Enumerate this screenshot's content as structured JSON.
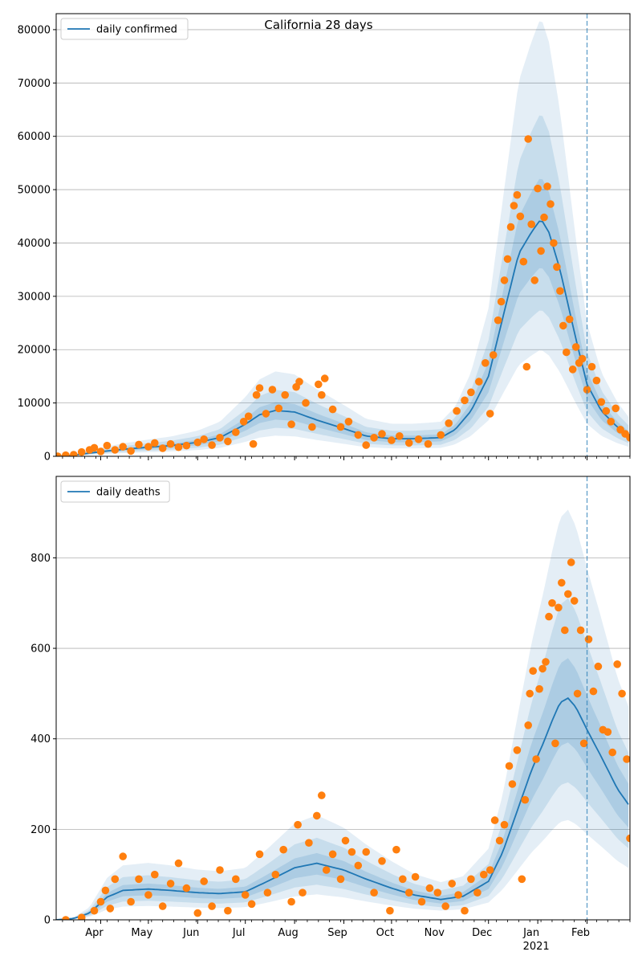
{
  "figure": {
    "title": "California 28 days"
  },
  "colors": {
    "line": "#1f77b4",
    "points": "#ff7f0e",
    "band": "#1f77b4",
    "grid": "#b0b0b0",
    "marker_line": "#1f77b4"
  },
  "x_axis": {
    "month_labels": [
      "Apr",
      "May",
      "Jun",
      "Jul",
      "Aug",
      "Sep",
      "Oct",
      "Nov",
      "Dec",
      "Jan",
      "Feb"
    ],
    "month_dates": [
      "2020-04-01",
      "2020-05-01",
      "2020-06-01",
      "2020-07-01",
      "2020-08-01",
      "2020-09-01",
      "2020-10-01",
      "2020-11-01",
      "2020-12-01",
      "2021-01-01",
      "2021-02-01"
    ],
    "year_label": "2021",
    "xlim": [
      "2020-03-04",
      "2021-02-28"
    ]
  },
  "chart_data": [
    {
      "type": "line",
      "title": "California 28 days",
      "legend": {
        "label": "daily confirmed",
        "placement": "top-left"
      },
      "ylim": [
        0,
        83000
      ],
      "yticks": [
        0,
        10000,
        20000,
        30000,
        40000,
        50000,
        60000,
        70000,
        80000
      ],
      "grid": "horizontal",
      "forecast_start": "2021-02-01",
      "series": [
        {
          "name": "daily confirmed",
          "kind": "model-line",
          "dates": [
            "2020-03-04",
            "2020-03-15",
            "2020-03-25",
            "2020-04-05",
            "2020-04-15",
            "2020-05-01",
            "2020-05-15",
            "2020-06-01",
            "2020-06-15",
            "2020-07-01",
            "2020-07-10",
            "2020-07-20",
            "2020-08-01",
            "2020-08-15",
            "2020-09-01",
            "2020-09-15",
            "2020-10-01",
            "2020-10-15",
            "2020-11-01",
            "2020-11-10",
            "2020-11-20",
            "2020-12-01",
            "2020-12-10",
            "2020-12-20",
            "2020-12-28",
            "2021-01-03",
            "2021-01-08",
            "2021-01-15",
            "2021-01-25",
            "2021-02-01",
            "2021-02-10",
            "2021-02-20",
            "2021-02-28"
          ],
          "values": [
            0,
            200,
            600,
            1000,
            1300,
            1700,
            2000,
            2600,
            3500,
            6000,
            7800,
            8600,
            8300,
            6800,
            5200,
            3800,
            3300,
            3300,
            3500,
            5000,
            8500,
            15000,
            26000,
            38000,
            42000,
            44500,
            42000,
            35000,
            22000,
            13500,
            8500,
            5500,
            3800
          ]
        },
        {
          "name": "daily confirmed observations",
          "kind": "points",
          "points": [
            [
              "2020-03-05",
              0
            ],
            [
              "2020-03-10",
              200
            ],
            [
              "2020-03-15",
              300
            ],
            [
              "2020-03-20",
              800
            ],
            [
              "2020-03-25",
              1200
            ],
            [
              "2020-03-28",
              1600
            ],
            [
              "2020-04-01",
              900
            ],
            [
              "2020-04-05",
              2000
            ],
            [
              "2020-04-10",
              1200
            ],
            [
              "2020-04-15",
              1800
            ],
            [
              "2020-04-20",
              1000
            ],
            [
              "2020-04-25",
              2200
            ],
            [
              "2020-05-01",
              1800
            ],
            [
              "2020-05-05",
              2500
            ],
            [
              "2020-05-10",
              1500
            ],
            [
              "2020-05-15",
              2300
            ],
            [
              "2020-05-20",
              1700
            ],
            [
              "2020-05-25",
              2000
            ],
            [
              "2020-06-01",
              2600
            ],
            [
              "2020-06-05",
              3200
            ],
            [
              "2020-06-10",
              2100
            ],
            [
              "2020-06-15",
              3500
            ],
            [
              "2020-06-20",
              2800
            ],
            [
              "2020-06-25",
              4500
            ],
            [
              "2020-06-30",
              6500
            ],
            [
              "2020-07-03",
              7500
            ],
            [
              "2020-07-06",
              2300
            ],
            [
              "2020-07-08",
              11500
            ],
            [
              "2020-07-10",
              12800
            ],
            [
              "2020-07-14",
              8000
            ],
            [
              "2020-07-18",
              12500
            ],
            [
              "2020-07-22",
              9000
            ],
            [
              "2020-07-26",
              11500
            ],
            [
              "2020-07-30",
              6000
            ],
            [
              "2020-08-02",
              13000
            ],
            [
              "2020-08-04",
              14000
            ],
            [
              "2020-08-08",
              10000
            ],
            [
              "2020-08-12",
              5500
            ],
            [
              "2020-08-16",
              13500
            ],
            [
              "2020-08-18",
              11500
            ],
            [
              "2020-08-20",
              14600
            ],
            [
              "2020-08-25",
              8800
            ],
            [
              "2020-08-30",
              5500
            ],
            [
              "2020-09-04",
              6500
            ],
            [
              "2020-09-10",
              4000
            ],
            [
              "2020-09-15",
              2100
            ],
            [
              "2020-09-20",
              3500
            ],
            [
              "2020-09-25",
              4200
            ],
            [
              "2020-10-01",
              3000
            ],
            [
              "2020-10-06",
              3800
            ],
            [
              "2020-10-12",
              2500
            ],
            [
              "2020-10-18",
              3200
            ],
            [
              "2020-10-24",
              2300
            ],
            [
              "2020-11-01",
              4000
            ],
            [
              "2020-11-06",
              6200
            ],
            [
              "2020-11-11",
              8500
            ],
            [
              "2020-11-16",
              10500
            ],
            [
              "2020-11-20",
              12000
            ],
            [
              "2020-11-25",
              14000
            ],
            [
              "2020-11-29",
              17500
            ],
            [
              "2020-12-02",
              8000
            ],
            [
              "2020-12-04",
              19000
            ],
            [
              "2020-12-07",
              25500
            ],
            [
              "2020-12-09",
              29000
            ],
            [
              "2020-12-11",
              33000
            ],
            [
              "2020-12-13",
              37000
            ],
            [
              "2020-12-15",
              43000
            ],
            [
              "2020-12-17",
              47000
            ],
            [
              "2020-12-19",
              49000
            ],
            [
              "2020-12-21",
              45000
            ],
            [
              "2020-12-23",
              36500
            ],
            [
              "2020-12-25",
              16800
            ],
            [
              "2020-12-26",
              59500
            ],
            [
              "2020-12-28",
              43500
            ],
            [
              "2020-12-30",
              33000
            ],
            [
              "2021-01-01",
              50200
            ],
            [
              "2021-01-03",
              38500
            ],
            [
              "2021-01-05",
              44800
            ],
            [
              "2021-01-07",
              50600
            ],
            [
              "2021-01-09",
              47300
            ],
            [
              "2021-01-11",
              40000
            ],
            [
              "2021-01-13",
              35500
            ],
            [
              "2021-01-15",
              31000
            ],
            [
              "2021-01-17",
              24500
            ],
            [
              "2021-01-19",
              19500
            ],
            [
              "2021-01-21",
              25700
            ],
            [
              "2021-01-23",
              16300
            ],
            [
              "2021-01-25",
              20500
            ],
            [
              "2021-01-27",
              17500
            ],
            [
              "2021-01-29",
              18300
            ],
            [
              "2021-02-01",
              12500
            ],
            [
              "2021-02-04",
              16800
            ],
            [
              "2021-02-07",
              14200
            ],
            [
              "2021-02-10",
              10200
            ],
            [
              "2021-02-13",
              8500
            ],
            [
              "2021-02-16",
              6500
            ],
            [
              "2021-02-19",
              9000
            ],
            [
              "2021-02-22",
              5000
            ],
            [
              "2021-02-25",
              4200
            ],
            [
              "2021-02-28",
              3500
            ]
          ]
        }
      ]
    },
    {
      "type": "line",
      "legend": {
        "label": "daily deaths",
        "placement": "top-left"
      },
      "ylim": [
        0,
        980
      ],
      "yticks": [
        0,
        200,
        400,
        600,
        800
      ],
      "grid": "horizontal",
      "forecast_start": "2021-02-01",
      "series": [
        {
          "name": "daily deaths",
          "kind": "model-line",
          "dates": [
            "2020-03-04",
            "2020-03-15",
            "2020-03-25",
            "2020-04-05",
            "2020-04-15",
            "2020-05-01",
            "2020-05-15",
            "2020-06-01",
            "2020-06-15",
            "2020-07-01",
            "2020-07-15",
            "2020-08-01",
            "2020-08-15",
            "2020-09-01",
            "2020-09-15",
            "2020-10-01",
            "2020-10-15",
            "2020-11-01",
            "2020-11-15",
            "2020-12-01",
            "2020-12-10",
            "2020-12-20",
            "2020-12-28",
            "2021-01-05",
            "2021-01-10",
            "2021-01-15",
            "2021-01-20",
            "2021-01-25",
            "2021-02-01",
            "2021-02-10",
            "2021-02-20",
            "2021-02-28"
          ],
          "values": [
            0,
            3,
            15,
            50,
            65,
            68,
            65,
            60,
            58,
            62,
            85,
            115,
            125,
            110,
            90,
            70,
            55,
            45,
            52,
            85,
            150,
            250,
            330,
            395,
            440,
            480,
            490,
            470,
            420,
            360,
            290,
            250
          ]
        },
        {
          "name": "daily deaths observations",
          "kind": "points",
          "points": [
            [
              "2020-03-10",
              0
            ],
            [
              "2020-03-20",
              5
            ],
            [
              "2020-03-28",
              20
            ],
            [
              "2020-04-01",
              40
            ],
            [
              "2020-04-04",
              65
            ],
            [
              "2020-04-07",
              25
            ],
            [
              "2020-04-10",
              90
            ],
            [
              "2020-04-15",
              140
            ],
            [
              "2020-04-20",
              40
            ],
            [
              "2020-04-25",
              90
            ],
            [
              "2020-05-01",
              55
            ],
            [
              "2020-05-05",
              100
            ],
            [
              "2020-05-10",
              30
            ],
            [
              "2020-05-15",
              80
            ],
            [
              "2020-05-20",
              125
            ],
            [
              "2020-05-25",
              70
            ],
            [
              "2020-06-01",
              15
            ],
            [
              "2020-06-05",
              85
            ],
            [
              "2020-06-10",
              30
            ],
            [
              "2020-06-15",
              110
            ],
            [
              "2020-06-20",
              20
            ],
            [
              "2020-06-25",
              90
            ],
            [
              "2020-07-01",
              55
            ],
            [
              "2020-07-05",
              35
            ],
            [
              "2020-07-10",
              145
            ],
            [
              "2020-07-15",
              60
            ],
            [
              "2020-07-20",
              100
            ],
            [
              "2020-07-25",
              155
            ],
            [
              "2020-07-30",
              40
            ],
            [
              "2020-08-03",
              210
            ],
            [
              "2020-08-06",
              60
            ],
            [
              "2020-08-10",
              170
            ],
            [
              "2020-08-15",
              230
            ],
            [
              "2020-08-18",
              275
            ],
            [
              "2020-08-21",
              110
            ],
            [
              "2020-08-25",
              145
            ],
            [
              "2020-08-30",
              90
            ],
            [
              "2020-09-02",
              175
            ],
            [
              "2020-09-06",
              150
            ],
            [
              "2020-09-10",
              120
            ],
            [
              "2020-09-15",
              150
            ],
            [
              "2020-09-20",
              60
            ],
            [
              "2020-09-25",
              130
            ],
            [
              "2020-09-30",
              20
            ],
            [
              "2020-10-04",
              155
            ],
            [
              "2020-10-08",
              90
            ],
            [
              "2020-10-12",
              60
            ],
            [
              "2020-10-16",
              95
            ],
            [
              "2020-10-20",
              40
            ],
            [
              "2020-10-25",
              70
            ],
            [
              "2020-10-30",
              60
            ],
            [
              "2020-11-04",
              30
            ],
            [
              "2020-11-08",
              80
            ],
            [
              "2020-11-12",
              55
            ],
            [
              "2020-11-16",
              20
            ],
            [
              "2020-11-20",
              90
            ],
            [
              "2020-11-24",
              60
            ],
            [
              "2020-11-28",
              100
            ],
            [
              "2020-12-02",
              110
            ],
            [
              "2020-12-05",
              220
            ],
            [
              "2020-12-08",
              175
            ],
            [
              "2020-12-11",
              210
            ],
            [
              "2020-12-14",
              340
            ],
            [
              "2020-12-16",
              300
            ],
            [
              "2020-12-19",
              375
            ],
            [
              "2020-12-22",
              90
            ],
            [
              "2020-12-24",
              265
            ],
            [
              "2020-12-26",
              430
            ],
            [
              "2020-12-27",
              500
            ],
            [
              "2020-12-29",
              550
            ],
            [
              "2020-12-31",
              355
            ],
            [
              "2021-01-02",
              510
            ],
            [
              "2021-01-04",
              555
            ],
            [
              "2021-01-06",
              570
            ],
            [
              "2021-01-08",
              670
            ],
            [
              "2021-01-10",
              700
            ],
            [
              "2021-01-12",
              390
            ],
            [
              "2021-01-14",
              690
            ],
            [
              "2021-01-16",
              745
            ],
            [
              "2021-01-18",
              640
            ],
            [
              "2021-01-20",
              720
            ],
            [
              "2021-01-22",
              790
            ],
            [
              "2021-01-24",
              705
            ],
            [
              "2021-01-26",
              500
            ],
            [
              "2021-01-28",
              640
            ],
            [
              "2021-01-30",
              390
            ],
            [
              "2021-02-02",
              620
            ],
            [
              "2021-02-05",
              505
            ],
            [
              "2021-02-08",
              560
            ],
            [
              "2021-02-11",
              420
            ],
            [
              "2021-02-14",
              415
            ],
            [
              "2021-02-17",
              370
            ],
            [
              "2021-02-20",
              565
            ],
            [
              "2021-02-23",
              500
            ],
            [
              "2021-02-26",
              355
            ],
            [
              "2021-02-28",
              180
            ]
          ]
        }
      ]
    }
  ]
}
